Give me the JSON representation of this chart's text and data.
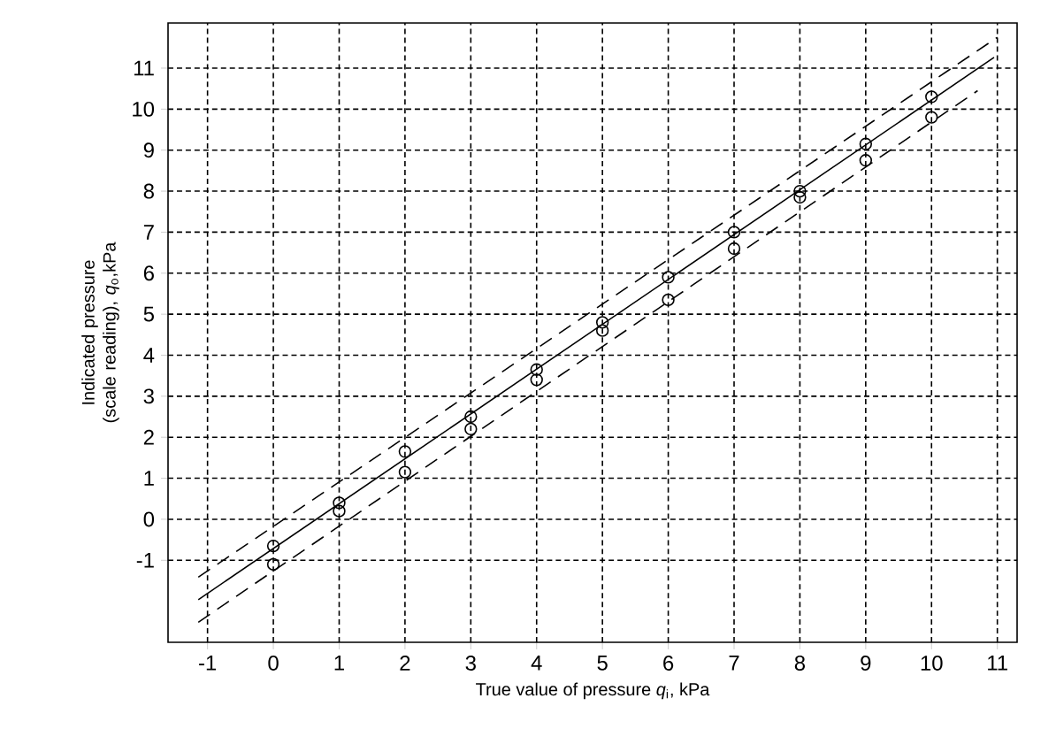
{
  "chart_data": {
    "type": "scatter",
    "xlabel": "True value of pressure *q*$_{i}$, kPa",
    "ylabel": "Indicated pressure (scale reading), *q*$_{o}$,kPa",
    "xlim": [
      -1.6,
      11.3
    ],
    "ylim": [
      -3,
      12.1
    ],
    "xticks": [
      -1,
      0,
      1,
      2,
      3,
      4,
      5,
      6,
      7,
      8,
      9,
      10,
      11
    ],
    "yticks": [
      -1,
      0,
      1,
      2,
      3,
      4,
      5,
      6,
      7,
      8,
      9,
      10,
      11
    ],
    "grid": true,
    "marker": "circle",
    "series": [
      {
        "color": "#000000",
        "x": [
          0,
          0,
          1,
          1,
          2,
          2,
          3,
          3,
          4,
          4,
          5,
          5,
          6,
          6,
          7,
          7,
          8,
          8,
          9,
          9,
          10,
          10
        ],
        "values": [
          -0.65,
          -1.1,
          0.4,
          0.2,
          1.65,
          1.15,
          2.5,
          2.2,
          3.65,
          3.4,
          4.8,
          4.6,
          5.9,
          5.35,
          7.0,
          6.6,
          8.0,
          7.85,
          9.15,
          8.75,
          10.3,
          9.8
        ]
      },
      {
        "type": "line",
        "color": "#000000",
        "marker": "none",
        "line_style": "solid",
        "x": [
          -1.14,
          10.95
        ],
        "values": [
          -1.96,
          11.26
        ]
      },
      {
        "type": "line",
        "color": "#000000",
        "marker": "none",
        "line_style": "dashed",
        "x": [
          -1.14,
          11.0
        ],
        "values": [
          -1.41,
          11.75
        ]
      },
      {
        "type": "line",
        "color": "#000000",
        "marker": "none",
        "line_style": "dashed",
        "x": [
          -1.14,
          10.7
        ],
        "values": [
          -2.51,
          10.45
        ]
      }
    ]
  }
}
